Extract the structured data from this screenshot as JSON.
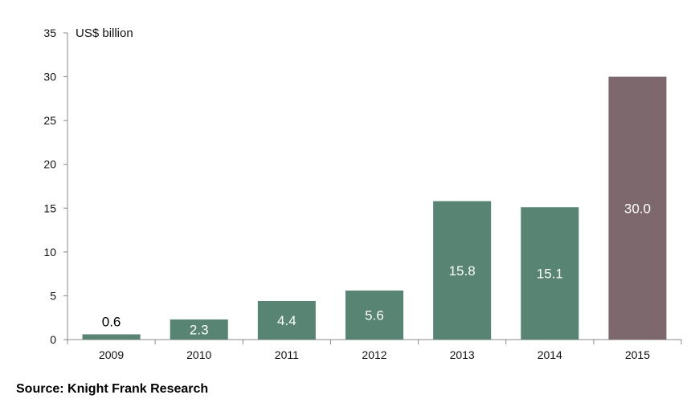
{
  "chart_data": {
    "type": "bar",
    "categories": [
      "2009",
      "2010",
      "2011",
      "2012",
      "2013",
      "2014",
      "2015"
    ],
    "values": [
      0.6,
      2.3,
      4.4,
      5.6,
      15.8,
      15.1,
      30.0
    ],
    "value_labels": [
      "0.6",
      "2.3",
      "4.4",
      "5.6",
      "15.8",
      "15.1",
      "30.0"
    ],
    "ylim": [
      0,
      35
    ],
    "yticks": [
      0,
      5,
      10,
      15,
      20,
      25,
      30,
      35
    ],
    "unit_label": "US$ billion",
    "grid": false,
    "legend": "none",
    "colors": {
      "default_bar": "#578473",
      "highlight_bar": "#7d686d",
      "highlight_index": 6,
      "axis": "#888888"
    }
  },
  "source": "Source: Knight Frank Research"
}
